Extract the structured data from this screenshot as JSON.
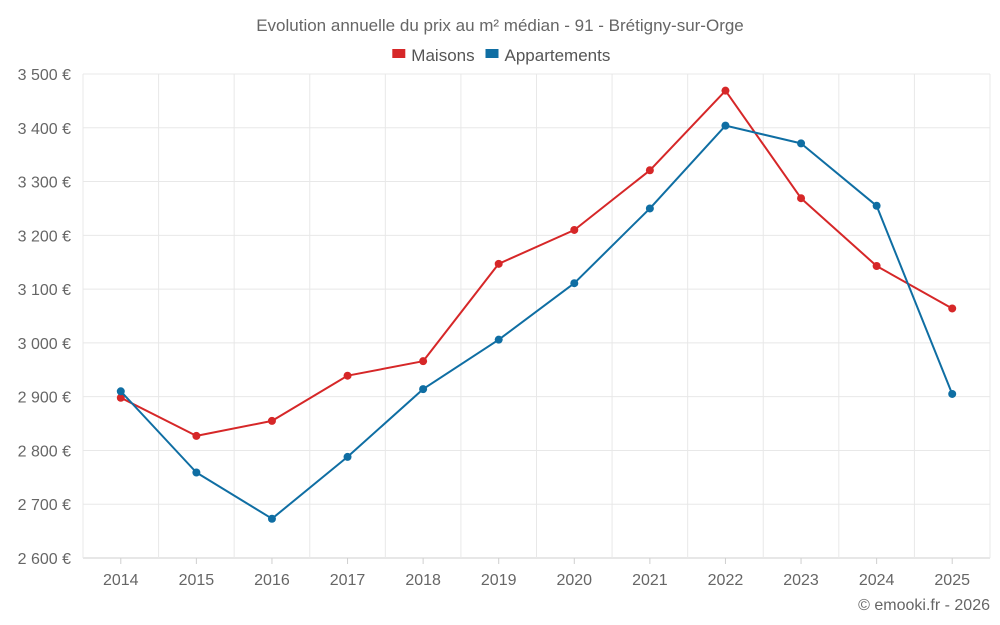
{
  "chart_data": {
    "type": "line",
    "title": "Evolution annuelle du prix au m² médian - 91 - Brétigny-sur-Orge",
    "x": [
      "2014",
      "2015",
      "2016",
      "2017",
      "2018",
      "2019",
      "2020",
      "2021",
      "2022",
      "2023",
      "2024",
      "2025"
    ],
    "ylim": [
      2600,
      3500
    ],
    "yticks": [
      2600,
      2700,
      2800,
      2900,
      3000,
      3100,
      3200,
      3300,
      3400,
      3500
    ],
    "ytick_labels": [
      "2 600 €",
      "2 700 €",
      "2 800 €",
      "2 900 €",
      "3 000 €",
      "3 100 €",
      "3 200 €",
      "3 300 €",
      "3 400 €",
      "3 500 €"
    ],
    "xlabel": "",
    "ylabel": "",
    "grid": true,
    "legend_position": "top-center",
    "series": [
      {
        "name": "Maisons",
        "color": "#d62728",
        "values": [
          2898,
          2827,
          2855,
          2939,
          2966,
          3147,
          3210,
          3321,
          3469,
          3269,
          3143,
          3064
        ]
      },
      {
        "name": "Appartements",
        "color": "#0f6ea3",
        "values": [
          2910,
          2759,
          2673,
          2788,
          2914,
          3006,
          3111,
          3250,
          3404,
          3371,
          3255,
          2905
        ]
      }
    ]
  },
  "credit": "© emooki.fr - 2026"
}
